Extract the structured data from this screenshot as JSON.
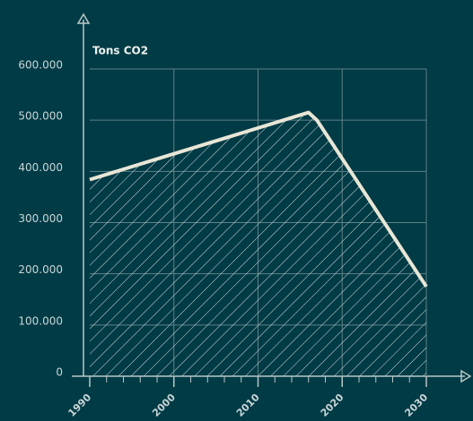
{
  "chart_data": {
    "type": "area",
    "y_label": "Tons CO2",
    "x": [
      1990,
      2016,
      2017,
      2030
    ],
    "series": [
      {
        "color": "#e8e6d6",
        "values": [
          384000,
          515000,
          500000,
          175000
        ]
      }
    ],
    "xlim": [
      1990,
      2030
    ],
    "xticks": [
      1990,
      2000,
      2010,
      2020,
      2030
    ],
    "xminorticks": [
      1992,
      1994,
      1996,
      1998,
      2002,
      2004,
      2006,
      2008,
      2012,
      2014,
      2016,
      2018,
      2022,
      2024,
      2026,
      2028
    ],
    "ylim": [
      0,
      600000
    ],
    "yticks": [
      0,
      {
        "value": 100000,
        "label": "100.000"
      },
      {
        "value": 200000,
        "label": "200.000"
      },
      {
        "value": 300000,
        "label": "300.000"
      },
      {
        "value": 400000,
        "label": "400.000"
      },
      {
        "value": 500000,
        "label": "500.000"
      },
      {
        "value": 600000,
        "label": "600.000"
      }
    ],
    "grid": true,
    "hatch": true
  }
}
